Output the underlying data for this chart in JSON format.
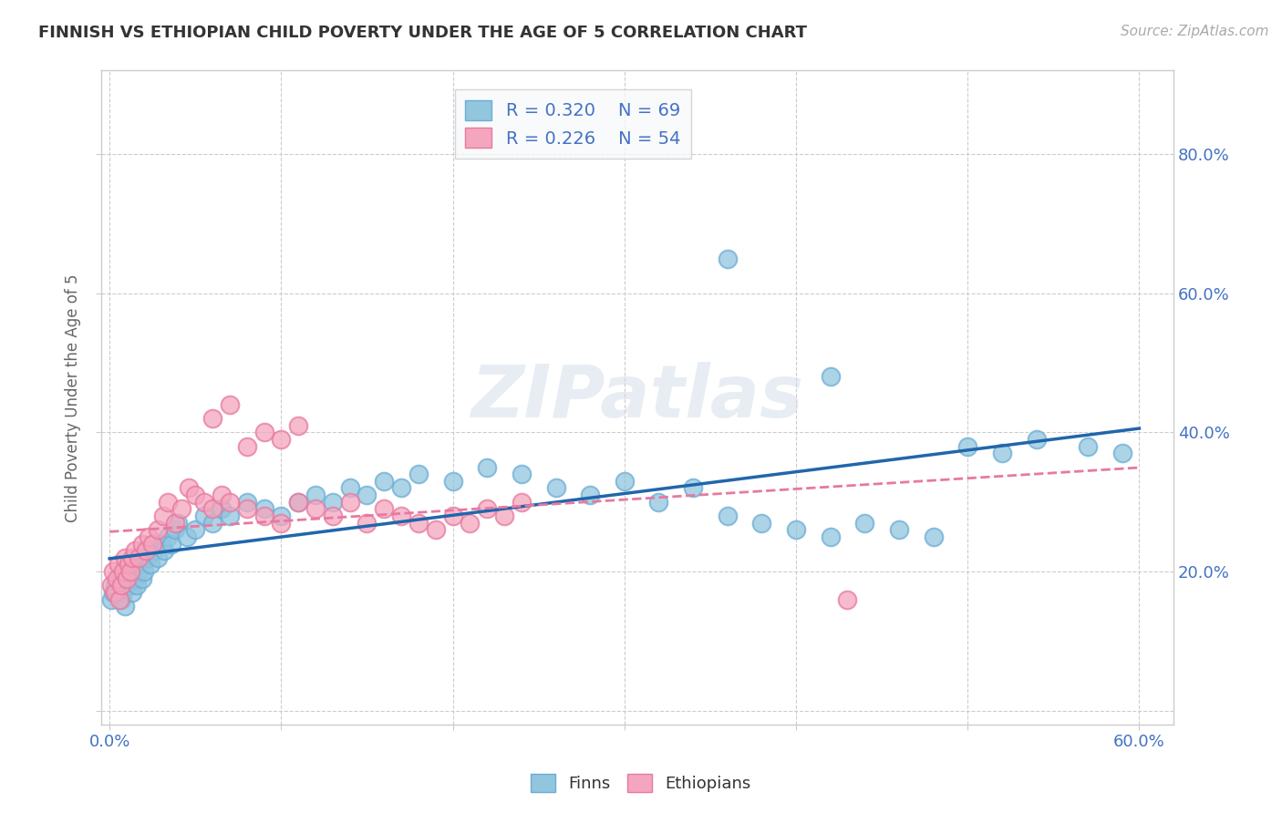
{
  "title": "FINNISH VS ETHIOPIAN CHILD POVERTY UNDER THE AGE OF 5 CORRELATION CHART",
  "source": "Source: ZipAtlas.com",
  "ylabel_label": "Child Poverty Under the Age of 5",
  "xlim": [
    -0.005,
    0.62
  ],
  "ylim": [
    -0.02,
    0.92
  ],
  "x_tick_positions": [
    0.0,
    0.1,
    0.2,
    0.3,
    0.4,
    0.5,
    0.6
  ],
  "x_tick_labels": [
    "0.0%",
    "",
    "",
    "",
    "",
    "",
    "60.0%"
  ],
  "y_tick_positions": [
    0.0,
    0.2,
    0.4,
    0.6,
    0.8
  ],
  "y_tick_labels": [
    "",
    "20.0%",
    "40.0%",
    "60.0%",
    "80.0%"
  ],
  "finns_color": "#92c5de",
  "finns_edge_color": "#6baed6",
  "ethiopians_color": "#f4a6be",
  "ethiopians_edge_color": "#e8799f",
  "finns_line_color": "#2166ac",
  "ethiopians_line_color": "#e8799f",
  "legend_text_color": "#4472c4",
  "watermark": "ZIPatlas",
  "background_color": "#ffffff",
  "grid_color": "#cccccc",
  "title_color": "#333333",
  "tick_color": "#4472c4",
  "finns_x": [
    0.001,
    0.002,
    0.003,
    0.004,
    0.005,
    0.006,
    0.007,
    0.008,
    0.009,
    0.01,
    0.011,
    0.012,
    0.013,
    0.014,
    0.015,
    0.016,
    0.017,
    0.018,
    0.019,
    0.02,
    0.022,
    0.024,
    0.026,
    0.028,
    0.03,
    0.032,
    0.034,
    0.036,
    0.038,
    0.04,
    0.045,
    0.05,
    0.055,
    0.06,
    0.065,
    0.07,
    0.08,
    0.09,
    0.1,
    0.11,
    0.12,
    0.13,
    0.14,
    0.15,
    0.16,
    0.17,
    0.18,
    0.2,
    0.22,
    0.24,
    0.26,
    0.28,
    0.3,
    0.32,
    0.34,
    0.36,
    0.38,
    0.4,
    0.42,
    0.44,
    0.46,
    0.48,
    0.5,
    0.52,
    0.54,
    0.36,
    0.42,
    0.57,
    0.59
  ],
  "finns_y": [
    0.16,
    0.17,
    0.18,
    0.17,
    0.19,
    0.18,
    0.16,
    0.17,
    0.15,
    0.18,
    0.19,
    0.18,
    0.17,
    0.2,
    0.19,
    0.18,
    0.2,
    0.21,
    0.19,
    0.2,
    0.22,
    0.21,
    0.23,
    0.22,
    0.24,
    0.23,
    0.25,
    0.24,
    0.26,
    0.27,
    0.25,
    0.26,
    0.28,
    0.27,
    0.29,
    0.28,
    0.3,
    0.29,
    0.28,
    0.3,
    0.31,
    0.3,
    0.32,
    0.31,
    0.33,
    0.32,
    0.34,
    0.33,
    0.35,
    0.34,
    0.32,
    0.31,
    0.33,
    0.3,
    0.32,
    0.28,
    0.27,
    0.26,
    0.25,
    0.27,
    0.26,
    0.25,
    0.38,
    0.37,
    0.39,
    0.65,
    0.48,
    0.38,
    0.37
  ],
  "ethiopians_x": [
    0.001,
    0.002,
    0.003,
    0.004,
    0.005,
    0.006,
    0.007,
    0.008,
    0.009,
    0.01,
    0.011,
    0.012,
    0.013,
    0.015,
    0.017,
    0.019,
    0.021,
    0.023,
    0.025,
    0.028,
    0.031,
    0.034,
    0.038,
    0.042,
    0.046,
    0.05,
    0.055,
    0.06,
    0.065,
    0.07,
    0.08,
    0.09,
    0.1,
    0.11,
    0.12,
    0.13,
    0.14,
    0.15,
    0.16,
    0.17,
    0.18,
    0.19,
    0.2,
    0.21,
    0.22,
    0.23,
    0.24,
    0.06,
    0.07,
    0.08,
    0.09,
    0.1,
    0.11,
    0.43
  ],
  "ethiopians_y": [
    0.18,
    0.2,
    0.17,
    0.19,
    0.21,
    0.16,
    0.18,
    0.2,
    0.22,
    0.19,
    0.21,
    0.2,
    0.22,
    0.23,
    0.22,
    0.24,
    0.23,
    0.25,
    0.24,
    0.26,
    0.28,
    0.3,
    0.27,
    0.29,
    0.32,
    0.31,
    0.3,
    0.29,
    0.31,
    0.3,
    0.29,
    0.28,
    0.27,
    0.3,
    0.29,
    0.28,
    0.3,
    0.27,
    0.29,
    0.28,
    0.27,
    0.26,
    0.28,
    0.27,
    0.29,
    0.28,
    0.3,
    0.42,
    0.44,
    0.38,
    0.4,
    0.39,
    0.41,
    0.16
  ]
}
